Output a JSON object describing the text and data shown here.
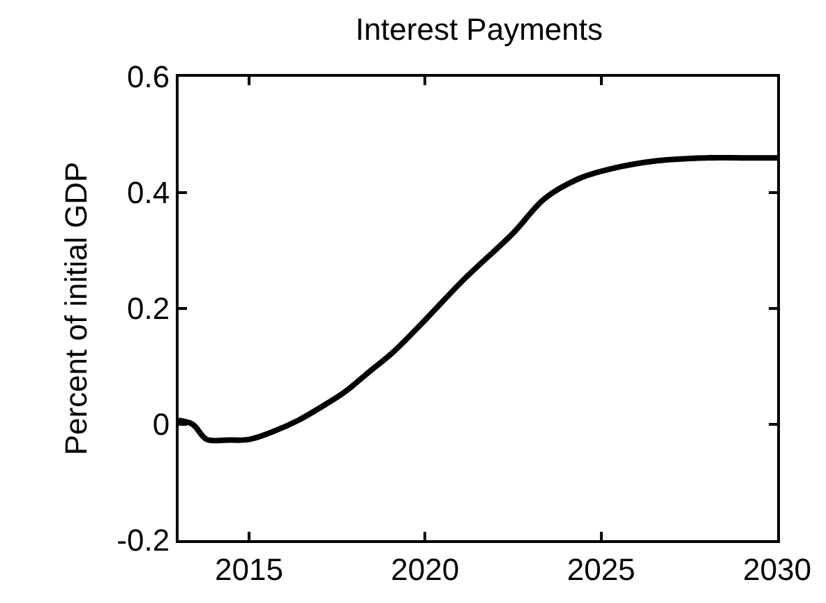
{
  "chart_data": {
    "type": "line",
    "title": "Interest Payments",
    "ylabel": "Percent of initial GDP",
    "x": [
      2013,
      2013.4,
      2013.8,
      2014.4,
      2015,
      2015.7,
      2016.4,
      2017,
      2017.7,
      2018.4,
      2019.1,
      2020,
      2021.1,
      2022.5,
      2023.4,
      2024.4,
      2025.2,
      2026.6,
      2028,
      2029,
      2030
    ],
    "series": [
      {
        "color": "#000000",
        "values": [
          0.007,
          0.0,
          -0.026,
          -0.027,
          -0.026,
          -0.012,
          0.007,
          0.028,
          0.055,
          0.09,
          0.125,
          0.18,
          0.25,
          0.33,
          0.39,
          0.425,
          0.44,
          0.455,
          0.46,
          0.46,
          0.46
        ]
      }
    ],
    "xlim": [
      2013,
      2030
    ],
    "xticks": [
      2015,
      2020,
      2025,
      2030
    ],
    "ylim": [
      -0.2,
      0.6
    ],
    "yticks": [
      -0.2,
      0,
      0.2,
      0.4,
      0.6
    ],
    "marker": "none",
    "line_style": "solid"
  }
}
